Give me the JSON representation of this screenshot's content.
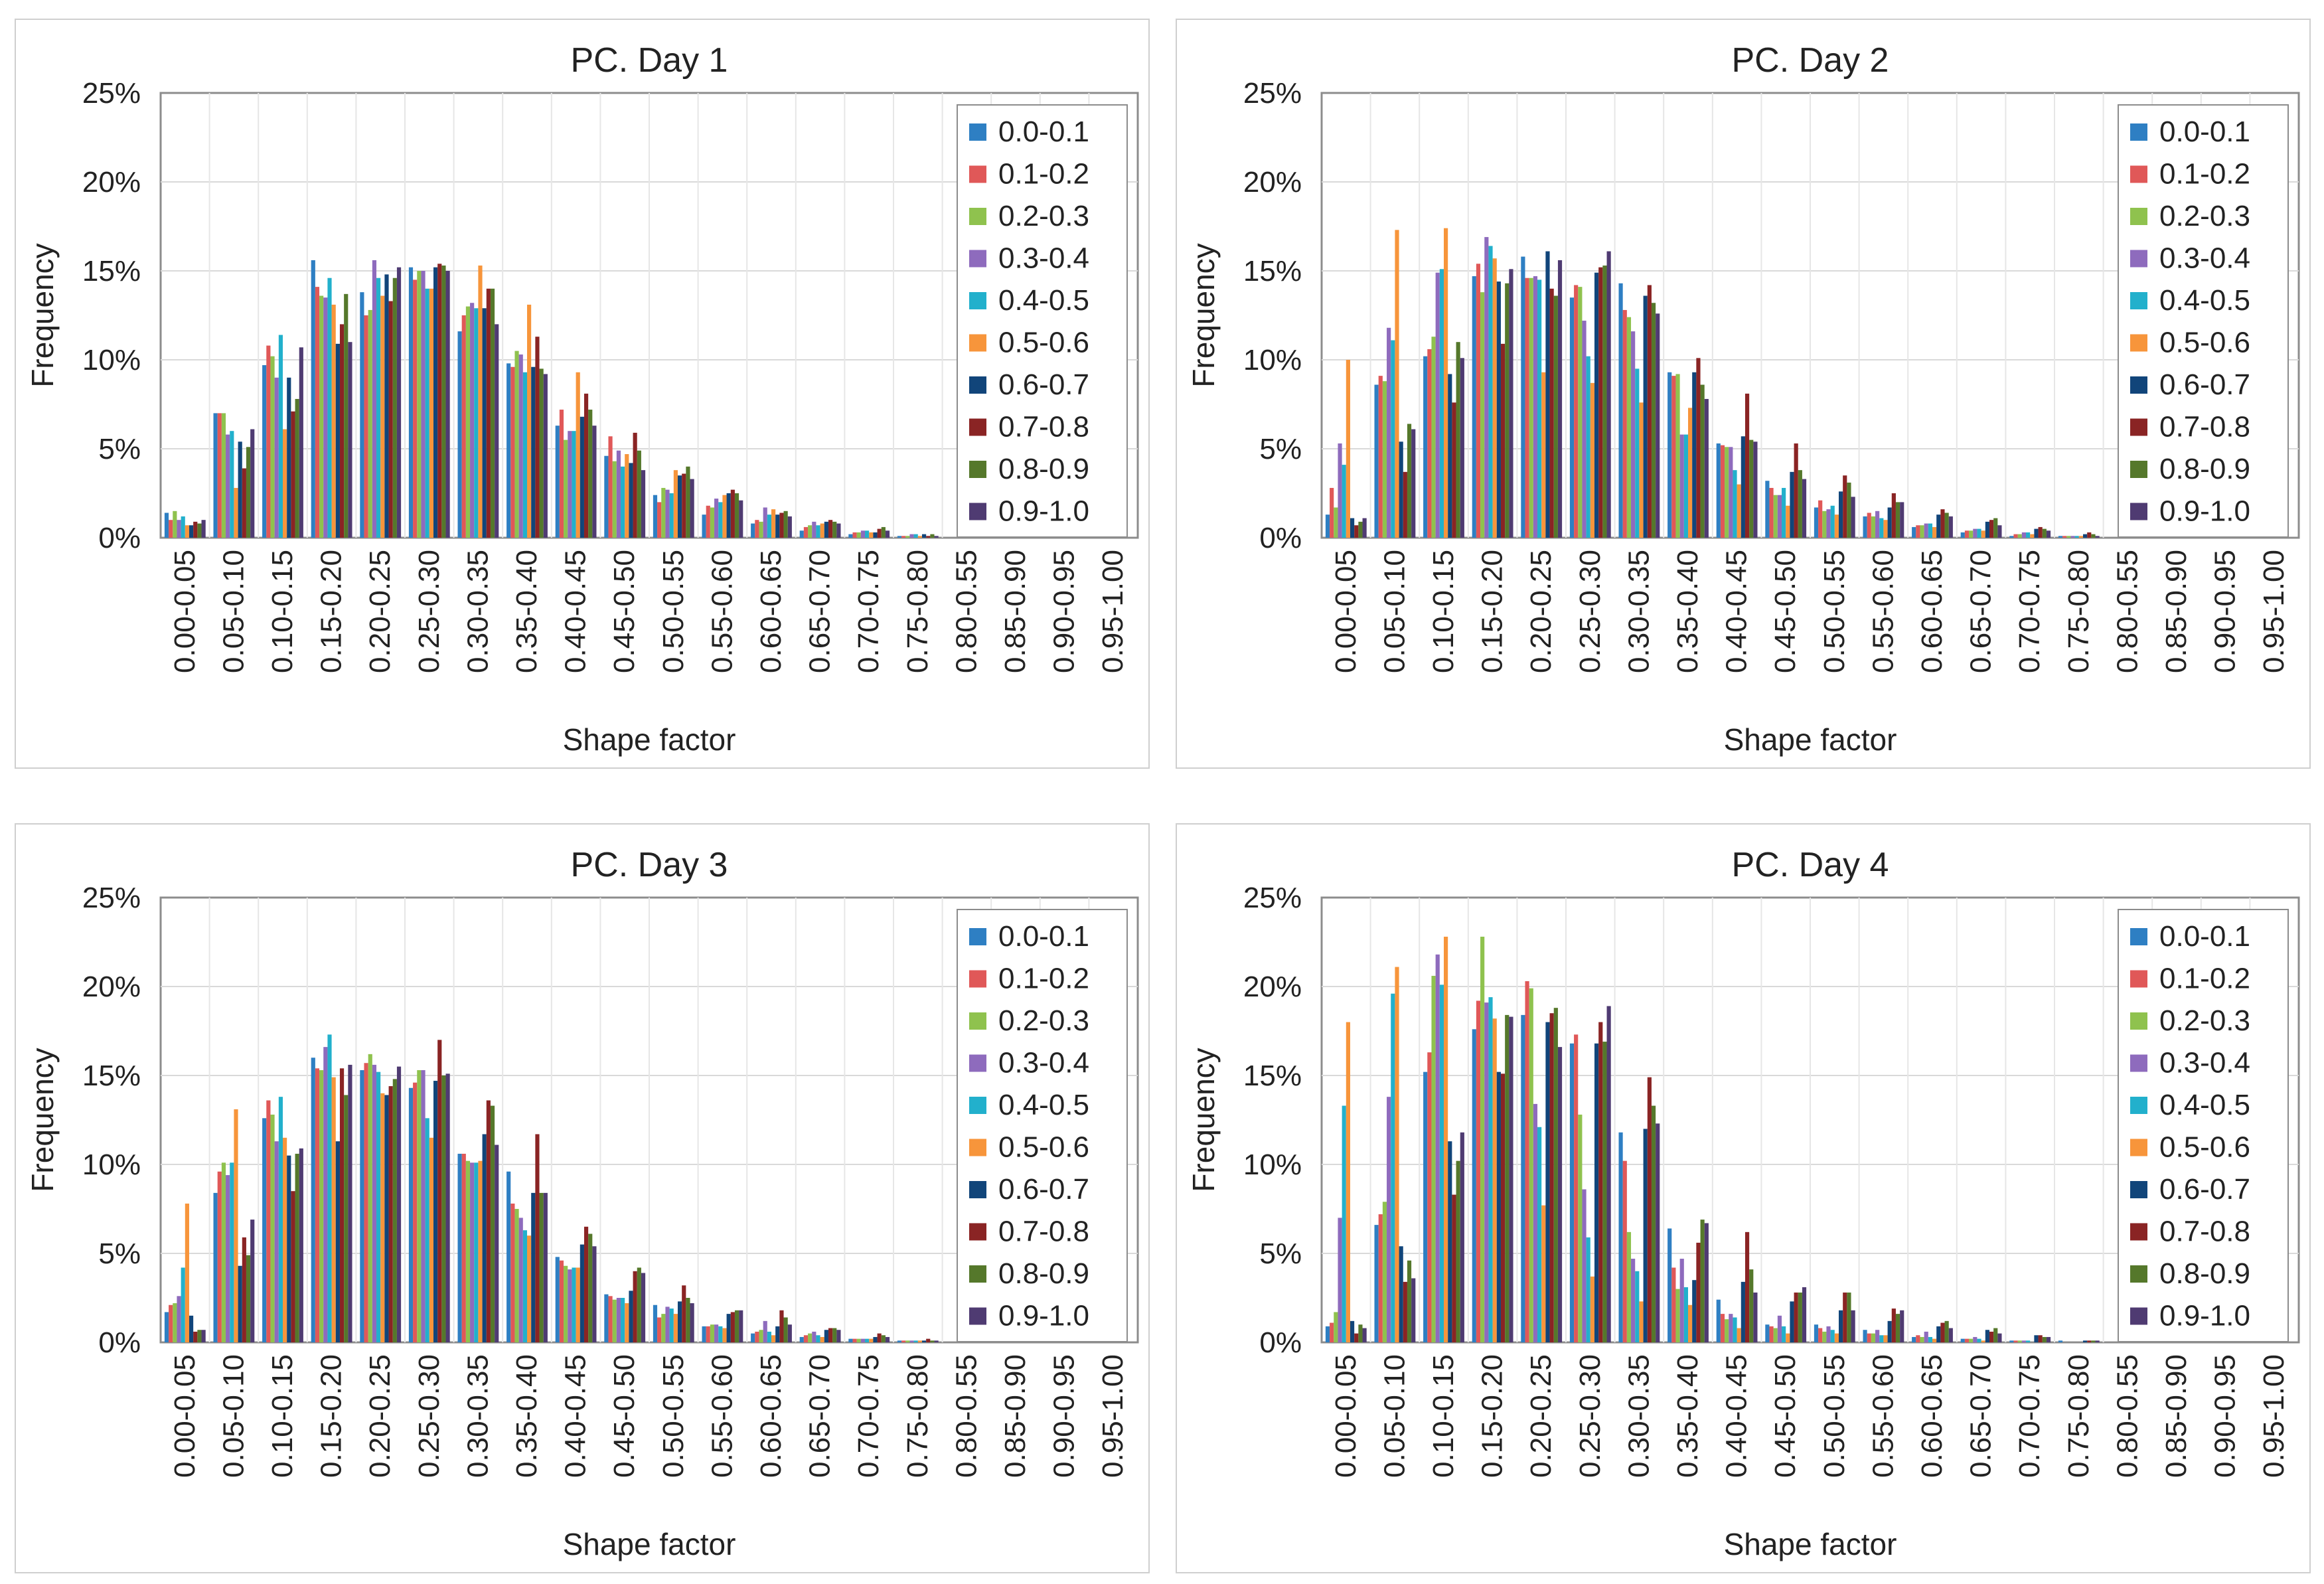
{
  "categories": [
    "0.00-0.05",
    "0.05-0.10",
    "0.10-0.15",
    "0.15-0.20",
    "0.20-0.25",
    "0.25-0.30",
    "0.30-0.35",
    "0.35-0.40",
    "0.40-0.45",
    "0.45-0.50",
    "0.50-0.55",
    "0.55-0.60",
    "0.60-0.65",
    "0.65-0.70",
    "0.70-0.75",
    "0.75-0.80",
    "0.80-0.55",
    "0.85-0.90",
    "0.90-0.95",
    "0.95-1.00"
  ],
  "series_names": [
    "0.0-0.1",
    "0.1-0.2",
    "0.2-0.3",
    "0.3-0.4",
    "0.4-0.5",
    "0.5-0.6",
    "0.6-0.7",
    "0.7-0.8",
    "0.8-0.9",
    "0.9-1.0"
  ],
  "series_colors": [
    "#2e7fc3",
    "#e05858",
    "#8fc24e",
    "#8e6bbd",
    "#22b0cc",
    "#f7953b",
    "#11457a",
    "#8a2424",
    "#55782b",
    "#4f3b72"
  ],
  "chart_data": [
    {
      "type": "bar",
      "title": "PC. Day 1",
      "xlabel": "Shape factor",
      "ylabel": "Frequency",
      "ylim": [
        0,
        25
      ],
      "yticks": [
        "0%",
        "5%",
        "10%",
        "15%",
        "20%",
        "25%"
      ],
      "grid": true,
      "legend_position": "top-right",
      "series": [
        {
          "name": "0.0-0.1",
          "values": [
            1.4,
            7.0,
            9.7,
            15.6,
            13.8,
            15.2,
            11.6,
            9.8,
            6.3,
            4.6,
            2.4,
            1.3,
            0.8,
            0.4,
            0.2,
            0.1,
            0,
            0,
            0,
            0
          ]
        },
        {
          "name": "0.1-0.2",
          "values": [
            1.0,
            7.0,
            10.8,
            14.1,
            12.5,
            14.5,
            12.5,
            9.6,
            7.2,
            5.7,
            2.0,
            1.8,
            1.0,
            0.6,
            0.3,
            0.1,
            0,
            0,
            0,
            0
          ]
        },
        {
          "name": "0.2-0.3",
          "values": [
            1.5,
            7.0,
            10.2,
            13.6,
            12.8,
            15.0,
            13.0,
            10.5,
            5.5,
            4.3,
            2.8,
            1.7,
            0.9,
            0.7,
            0.3,
            0.1,
            0,
            0,
            0,
            0
          ]
        },
        {
          "name": "0.3-0.4",
          "values": [
            1.0,
            5.8,
            9.0,
            13.5,
            15.6,
            15.0,
            13.2,
            10.3,
            6.0,
            4.9,
            2.7,
            2.2,
            1.7,
            0.9,
            0.4,
            0.2,
            0,
            0,
            0,
            0
          ]
        },
        {
          "name": "0.4-0.5",
          "values": [
            1.2,
            6.0,
            11.4,
            14.6,
            14.6,
            14.0,
            12.9,
            9.3,
            6.0,
            4.0,
            2.5,
            2.0,
            1.3,
            0.7,
            0.4,
            0.2,
            0,
            0,
            0,
            0
          ]
        },
        {
          "name": "0.5-0.6",
          "values": [
            0.7,
            2.8,
            6.1,
            13.1,
            13.6,
            14.0,
            15.3,
            13.1,
            9.3,
            4.7,
            3.8,
            2.4,
            1.6,
            0.8,
            0.3,
            0.1,
            0,
            0,
            0,
            0
          ]
        },
        {
          "name": "0.6-0.7",
          "values": [
            0.7,
            5.4,
            9.0,
            10.9,
            14.8,
            15.2,
            12.9,
            9.6,
            6.8,
            4.2,
            3.5,
            2.5,
            1.3,
            0.9,
            0.3,
            0.2,
            0,
            0,
            0,
            0
          ]
        },
        {
          "name": "0.7-0.8",
          "values": [
            0.9,
            3.9,
            7.1,
            12.0,
            13.3,
            15.4,
            14.0,
            11.3,
            8.1,
            5.9,
            3.6,
            2.7,
            1.4,
            1.0,
            0.5,
            0.1,
            0,
            0,
            0,
            0
          ]
        },
        {
          "name": "0.8-0.9",
          "values": [
            0.8,
            5.1,
            7.8,
            13.7,
            14.6,
            15.3,
            14.0,
            9.5,
            7.2,
            4.9,
            4.0,
            2.5,
            1.5,
            0.9,
            0.6,
            0.2,
            0,
            0,
            0,
            0
          ]
        },
        {
          "name": "0.9-1.0",
          "values": [
            1.0,
            6.1,
            10.7,
            11.0,
            15.2,
            15.0,
            12.0,
            9.2,
            6.3,
            3.8,
            3.3,
            2.1,
            1.2,
            0.8,
            0.4,
            0.1,
            0,
            0,
            0,
            0
          ]
        }
      ]
    },
    {
      "type": "bar",
      "title": "PC. Day 2",
      "xlabel": "Shape factor",
      "ylabel": "Frequency",
      "ylim": [
        0,
        25
      ],
      "yticks": [
        "0%",
        "5%",
        "10%",
        "15%",
        "20%",
        "25%"
      ],
      "grid": true,
      "legend_position": "top-right",
      "series": [
        {
          "name": "0.0-0.1",
          "values": [
            1.3,
            8.6,
            10.2,
            14.7,
            15.8,
            13.5,
            14.3,
            9.3,
            5.3,
            3.2,
            1.7,
            1.2,
            0.6,
            0.3,
            0.1,
            0.1,
            0,
            0,
            0,
            0
          ]
        },
        {
          "name": "0.1-0.2",
          "values": [
            2.8,
            9.1,
            10.6,
            15.4,
            14.6,
            14.2,
            12.8,
            9.1,
            5.2,
            2.8,
            2.1,
            1.4,
            0.7,
            0.4,
            0.2,
            0.1,
            0,
            0,
            0,
            0
          ]
        },
        {
          "name": "0.2-0.3",
          "values": [
            1.7,
            8.8,
            11.3,
            13.8,
            14.6,
            14.1,
            12.4,
            9.2,
            5.1,
            2.4,
            1.5,
            1.2,
            0.7,
            0.4,
            0.2,
            0.1,
            0,
            0,
            0,
            0
          ]
        },
        {
          "name": "0.3-0.4",
          "values": [
            5.3,
            11.8,
            14.9,
            16.9,
            14.7,
            12.2,
            11.6,
            5.8,
            5.1,
            2.4,
            1.6,
            1.5,
            0.8,
            0.5,
            0.3,
            0.1,
            0,
            0,
            0,
            0
          ]
        },
        {
          "name": "0.4-0.5",
          "values": [
            4.1,
            11.1,
            15.1,
            16.4,
            14.5,
            10.2,
            9.5,
            5.8,
            3.8,
            2.8,
            1.8,
            1.1,
            0.8,
            0.5,
            0.3,
            0.1,
            0,
            0,
            0,
            0
          ]
        },
        {
          "name": "0.5-0.6",
          "values": [
            10.0,
            17.3,
            17.4,
            15.7,
            9.3,
            8.7,
            7.6,
            7.3,
            3.0,
            1.8,
            1.3,
            1.0,
            0.6,
            0.4,
            0.2,
            0.1,
            0,
            0,
            0,
            0
          ]
        },
        {
          "name": "0.6-0.7",
          "values": [
            1.1,
            5.4,
            9.2,
            14.4,
            16.1,
            14.9,
            13.6,
            9.3,
            5.7,
            3.7,
            2.6,
            1.7,
            1.3,
            0.9,
            0.5,
            0.2,
            0,
            0,
            0,
            0
          ]
        },
        {
          "name": "0.7-0.8",
          "values": [
            0.7,
            3.7,
            7.6,
            10.9,
            14.0,
            15.2,
            14.2,
            10.1,
            8.1,
            5.3,
            3.5,
            2.5,
            1.6,
            1.0,
            0.6,
            0.3,
            0,
            0,
            0,
            0
          ]
        },
        {
          "name": "0.8-0.9",
          "values": [
            0.9,
            6.4,
            11.0,
            14.3,
            13.6,
            15.3,
            13.2,
            8.6,
            5.5,
            3.8,
            3.1,
            2.0,
            1.4,
            1.1,
            0.5,
            0.2,
            0,
            0,
            0,
            0
          ]
        },
        {
          "name": "0.9-1.0",
          "values": [
            1.1,
            6.1,
            10.1,
            15.1,
            15.6,
            16.1,
            12.6,
            7.8,
            5.4,
            3.3,
            2.3,
            2.0,
            1.2,
            0.7,
            0.4,
            0.1,
            0,
            0,
            0,
            0
          ]
        }
      ]
    },
    {
      "type": "bar",
      "title": "PC. Day 3",
      "xlabel": "Shape factor",
      "ylabel": "Frequency",
      "ylim": [
        0,
        25
      ],
      "yticks": [
        "0%",
        "5%",
        "10%",
        "15%",
        "20%",
        "25%"
      ],
      "grid": true,
      "legend_position": "top-right",
      "series": [
        {
          "name": "0.0-0.1",
          "values": [
            1.7,
            8.4,
            12.6,
            16.0,
            15.3,
            14.3,
            10.6,
            9.6,
            4.8,
            2.7,
            2.1,
            0.9,
            0.5,
            0.3,
            0.2,
            0.1,
            0,
            0,
            0,
            0
          ]
        },
        {
          "name": "0.1-0.2",
          "values": [
            2.1,
            9.6,
            13.6,
            15.4,
            15.7,
            14.6,
            10.6,
            7.8,
            4.6,
            2.6,
            1.4,
            0.9,
            0.6,
            0.4,
            0.2,
            0.1,
            0,
            0,
            0,
            0
          ]
        },
        {
          "name": "0.2-0.3",
          "values": [
            2.2,
            10.1,
            12.8,
            15.3,
            16.2,
            15.3,
            10.2,
            7.5,
            4.3,
            2.4,
            1.6,
            1.0,
            0.7,
            0.5,
            0.2,
            0.1,
            0,
            0,
            0,
            0
          ]
        },
        {
          "name": "0.3-0.4",
          "values": [
            2.6,
            9.4,
            11.3,
            16.6,
            15.6,
            15.3,
            10.1,
            7.0,
            4.1,
            2.5,
            2.0,
            1.0,
            1.2,
            0.6,
            0.2,
            0.1,
            0,
            0,
            0,
            0
          ]
        },
        {
          "name": "0.4-0.5",
          "values": [
            4.2,
            10.1,
            13.8,
            17.3,
            15.2,
            12.6,
            10.1,
            6.3,
            4.2,
            2.5,
            1.9,
            0.9,
            0.6,
            0.4,
            0.2,
            0.1,
            0,
            0,
            0,
            0
          ]
        },
        {
          "name": "0.5-0.6",
          "values": [
            7.8,
            13.1,
            11.5,
            14.9,
            14.0,
            11.5,
            10.2,
            6.0,
            4.2,
            2.2,
            1.6,
            0.8,
            0.4,
            0.3,
            0.2,
            0.1,
            0,
            0,
            0,
            0
          ]
        },
        {
          "name": "0.6-0.7",
          "values": [
            1.5,
            4.3,
            10.5,
            11.3,
            13.9,
            14.7,
            11.7,
            8.4,
            5.5,
            2.9,
            2.3,
            1.6,
            0.9,
            0.7,
            0.3,
            0.1,
            0,
            0,
            0,
            0
          ]
        },
        {
          "name": "0.7-0.8",
          "values": [
            0.6,
            5.9,
            8.5,
            15.4,
            14.4,
            17.0,
            13.6,
            11.7,
            6.5,
            4.0,
            3.2,
            1.7,
            1.8,
            0.8,
            0.5,
            0.2,
            0,
            0,
            0,
            0
          ]
        },
        {
          "name": "0.8-0.9",
          "values": [
            0.7,
            4.9,
            10.6,
            13.9,
            14.8,
            15.0,
            13.3,
            8.4,
            6.1,
            4.2,
            2.5,
            1.8,
            1.4,
            0.8,
            0.4,
            0.1,
            0,
            0,
            0,
            0
          ]
        },
        {
          "name": "0.9-1.0",
          "values": [
            0.7,
            6.9,
            10.9,
            15.6,
            15.5,
            15.1,
            11.1,
            8.4,
            5.4,
            3.9,
            2.2,
            1.8,
            1.0,
            0.7,
            0.3,
            0.1,
            0,
            0,
            0,
            0
          ]
        }
      ]
    },
    {
      "type": "bar",
      "title": "PC. Day 4",
      "xlabel": "Shape factor",
      "ylabel": "Frequency",
      "ylim": [
        0,
        25
      ],
      "yticks": [
        "0%",
        "5%",
        "10%",
        "15%",
        "20%",
        "25%"
      ],
      "grid": true,
      "legend_position": "top-right",
      "series": [
        {
          "name": "0.0-0.1",
          "values": [
            0.9,
            6.6,
            15.2,
            17.6,
            18.4,
            16.8,
            11.8,
            6.4,
            2.4,
            1.0,
            1.0,
            0.7,
            0.3,
            0.2,
            0.1,
            0.1,
            0,
            0,
            0,
            0
          ]
        },
        {
          "name": "0.1-0.2",
          "values": [
            1.1,
            7.2,
            16.3,
            19.2,
            20.3,
            17.3,
            10.2,
            4.2,
            1.6,
            0.9,
            0.8,
            0.5,
            0.4,
            0.2,
            0.1,
            0,
            0,
            0,
            0,
            0
          ]
        },
        {
          "name": "0.2-0.3",
          "values": [
            1.7,
            7.9,
            20.6,
            22.8,
            19.9,
            12.8,
            6.2,
            3.0,
            1.3,
            0.8,
            0.6,
            0.5,
            0.3,
            0.2,
            0.1,
            0,
            0,
            0,
            0,
            0
          ]
        },
        {
          "name": "0.3-0.4",
          "values": [
            7.0,
            13.8,
            21.8,
            19.1,
            13.4,
            8.6,
            4.7,
            4.7,
            1.6,
            1.5,
            0.9,
            0.7,
            0.6,
            0.3,
            0.1,
            0,
            0,
            0,
            0,
            0
          ]
        },
        {
          "name": "0.4-0.5",
          "values": [
            13.3,
            19.6,
            20.1,
            19.4,
            12.1,
            5.9,
            4.0,
            3.1,
            1.4,
            0.9,
            0.7,
            0.4,
            0.3,
            0.2,
            0.1,
            0,
            0,
            0,
            0,
            0
          ]
        },
        {
          "name": "0.5-0.6",
          "values": [
            18.0,
            21.1,
            22.8,
            18.2,
            7.7,
            3.7,
            2.3,
            2.1,
            0.8,
            0.5,
            0.5,
            0.4,
            0.2,
            0.1,
            0,
            0,
            0,
            0,
            0,
            0
          ]
        },
        {
          "name": "0.6-0.7",
          "values": [
            1.2,
            5.4,
            11.3,
            15.2,
            18.0,
            16.8,
            12.0,
            3.5,
            3.4,
            2.3,
            1.8,
            1.2,
            0.9,
            0.7,
            0.4,
            0.1,
            0,
            0,
            0,
            0
          ]
        },
        {
          "name": "0.7-0.8",
          "values": [
            0.5,
            3.4,
            8.3,
            15.1,
            18.5,
            18.0,
            14.9,
            5.6,
            6.2,
            2.8,
            2.8,
            1.9,
            1.1,
            0.6,
            0.4,
            0.1,
            0,
            0,
            0,
            0
          ]
        },
        {
          "name": "0.8-0.9",
          "values": [
            1.0,
            4.6,
            10.2,
            18.4,
            18.8,
            16.9,
            13.3,
            6.9,
            4.1,
            2.8,
            2.8,
            1.6,
            1.2,
            0.8,
            0.3,
            0.1,
            0,
            0,
            0,
            0
          ]
        },
        {
          "name": "0.9-1.0",
          "values": [
            0.8,
            3.6,
            11.8,
            18.3,
            16.6,
            18.9,
            12.3,
            6.7,
            2.8,
            3.1,
            1.8,
            1.8,
            0.8,
            0.5,
            0.3,
            0.1,
            0,
            0,
            0,
            0
          ]
        }
      ]
    }
  ]
}
